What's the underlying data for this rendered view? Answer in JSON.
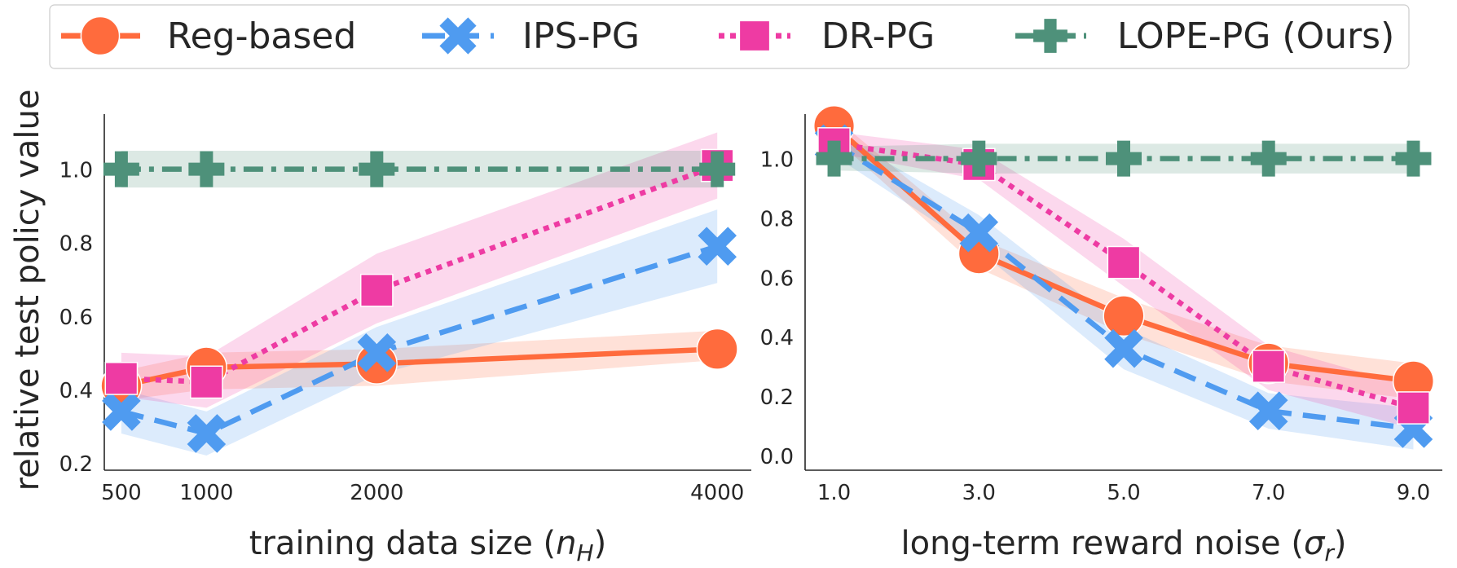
{
  "chart_data": {
    "type": "line",
    "legend": {
      "placement": "top-center",
      "entries": [
        {
          "name": "Reg-based",
          "color": "#FF6B3D",
          "marker": "circle",
          "line": "solid"
        },
        {
          "name": "IPS-PG",
          "color": "#4F9BF0",
          "marker": "x",
          "line": "dashed"
        },
        {
          "name": "DR-PG",
          "color": "#EE3BA3",
          "marker": "square",
          "line": "dotted"
        },
        {
          "name": "LOPE-PG (Ours)",
          "color": "#4E917A",
          "marker": "plus",
          "line": "dashdot"
        }
      ]
    },
    "ylabel": "relative test policy value",
    "subplots": [
      {
        "id": "left",
        "xlabel": "training data size (",
        "xlabel_symbol": "n",
        "xlabel_sub": "H",
        "xlabel_close": ")",
        "x": [
          500,
          1000,
          2000,
          4000
        ],
        "xtick_labels": [
          "500",
          "1000",
          "2000",
          "4000"
        ],
        "xlim": [
          400,
          4200
        ],
        "ylim": [
          0.18,
          1.15
        ],
        "yticks": [
          0.2,
          0.4,
          0.6,
          0.8,
          1.0
        ],
        "ytick_labels": [
          "0.2",
          "0.4",
          "0.6",
          "0.8",
          "1.0"
        ],
        "series": [
          {
            "name": "Reg-based",
            "values": [
              0.41,
              0.46,
              0.47,
              0.51
            ],
            "lower": [
              0.37,
              0.4,
              0.41,
              0.48
            ],
            "upper": [
              0.45,
              0.5,
              0.51,
              0.56
            ]
          },
          {
            "name": "IPS-PG",
            "values": [
              0.34,
              0.28,
              0.5,
              0.79
            ],
            "lower": [
              0.28,
              0.22,
              0.44,
              0.69
            ],
            "upper": [
              0.4,
              0.34,
              0.57,
              0.89
            ]
          },
          {
            "name": "DR-PG",
            "values": [
              0.43,
              0.42,
              0.67,
              1.01
            ],
            "lower": [
              0.38,
              0.35,
              0.58,
              0.92
            ],
            "upper": [
              0.5,
              0.49,
              0.77,
              1.1
            ]
          },
          {
            "name": "LOPE-PG (Ours)",
            "values": [
              1.0,
              1.0,
              1.0,
              1.0
            ],
            "lower": [
              0.95,
              0.95,
              0.95,
              0.95
            ],
            "upper": [
              1.05,
              1.05,
              1.05,
              1.05
            ]
          }
        ]
      },
      {
        "id": "right",
        "xlabel": "long-term reward noise (",
        "xlabel_symbol": "σ",
        "xlabel_sub": "r",
        "xlabel_close": ")",
        "x": [
          1.0,
          3.0,
          5.0,
          7.0,
          9.0
        ],
        "xtick_labels": [
          "1.0",
          "3.0",
          "5.0",
          "7.0",
          "9.0"
        ],
        "xlim": [
          0.6,
          9.4
        ],
        "ylim": [
          -0.05,
          1.15
        ],
        "yticks": [
          0.0,
          0.2,
          0.4,
          0.6,
          0.8,
          1.0
        ],
        "ytick_labels": [
          "0.0",
          "0.2",
          "0.4",
          "0.6",
          "0.8",
          "1.0"
        ],
        "series": [
          {
            "name": "Reg-based",
            "values": [
              1.11,
              0.68,
              0.47,
              0.31,
              0.25
            ],
            "lower": [
              1.07,
              0.63,
              0.41,
              0.25,
              0.19
            ],
            "upper": [
              1.14,
              0.73,
              0.53,
              0.37,
              0.31
            ]
          },
          {
            "name": "IPS-PG",
            "values": [
              1.05,
              0.75,
              0.36,
              0.15,
              0.09
            ],
            "lower": [
              1.01,
              0.69,
              0.29,
              0.09,
              0.02
            ],
            "upper": [
              1.09,
              0.81,
              0.43,
              0.21,
              0.16
            ]
          },
          {
            "name": "DR-PG",
            "values": [
              1.05,
              0.98,
              0.65,
              0.3,
              0.16
            ],
            "lower": [
              1.02,
              0.93,
              0.57,
              0.22,
              0.09
            ],
            "upper": [
              1.09,
              1.03,
              0.73,
              0.37,
              0.23
            ]
          },
          {
            "name": "LOPE-PG (Ours)",
            "values": [
              1.0,
              1.0,
              1.0,
              1.0,
              1.0
            ],
            "lower": [
              0.96,
              0.95,
              0.95,
              0.95,
              0.95
            ],
            "upper": [
              1.04,
              1.05,
              1.05,
              1.05,
              1.05
            ]
          }
        ]
      }
    ]
  }
}
